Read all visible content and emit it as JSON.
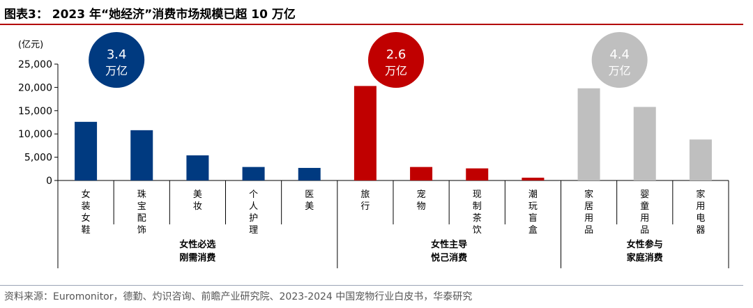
{
  "title": "图表3： 2023 年“她经济”消费市场规模已超 10 万亿",
  "source": "资料来源：Euromonitor，德勤、灼识咨询、前瞻产业研究院、2023-2024 中国宠物行业白皮书，华泰研究",
  "chart_data": {
    "type": "bar",
    "unit_label": "(亿元)",
    "ylim": [
      0,
      25000
    ],
    "yticks": [
      "0",
      "5,000",
      "10,000",
      "15,000",
      "20,000",
      "25,000"
    ],
    "categories": [
      "女装女鞋",
      "珠宝配饰",
      "美妆",
      "个人护理",
      "医美",
      "旅行",
      "宠物",
      "现制茶饮",
      "潮玩盲盒",
      "家居用品",
      "婴童用品",
      "家用电器"
    ],
    "values": [
      12600,
      10800,
      5400,
      2900,
      2700,
      20300,
      2900,
      2600,
      600,
      19800,
      15800,
      8800
    ],
    "groups": [
      {
        "name_line1": "女性必选",
        "name_line2": "刚需消费",
        "start": 0,
        "end": 4,
        "color": "#003a80",
        "bubble_value": "3.4",
        "bubble_unit": "万亿"
      },
      {
        "name_line1": "女性主导",
        "name_line2": "悦己消费",
        "start": 5,
        "end": 8,
        "color": "#c00000",
        "bubble_value": "2.6",
        "bubble_unit": "万亿"
      },
      {
        "name_line1": "女性参与",
        "name_line2": "家庭消费",
        "start": 9,
        "end": 11,
        "color": "#bfbfbf",
        "bubble_value": "4.4",
        "bubble_unit": "万亿"
      }
    ]
  }
}
